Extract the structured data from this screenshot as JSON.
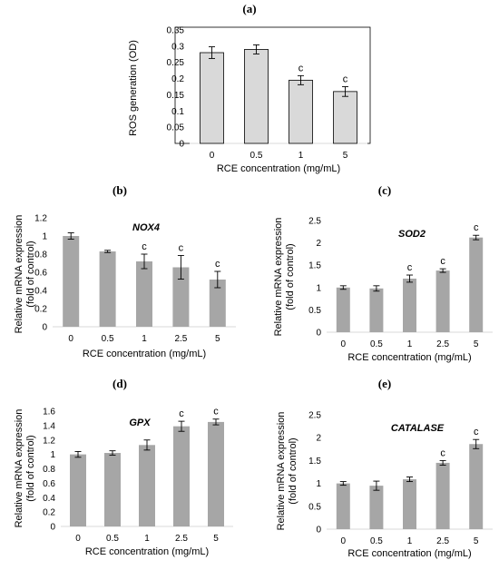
{
  "chart_data": [
    {
      "panel": "(a)",
      "type": "bar",
      "categories": [
        "0",
        "0.5",
        "1",
        "5"
      ],
      "values": [
        0.28,
        0.29,
        0.195,
        0.16
      ],
      "errors": [
        0.018,
        0.014,
        0.014,
        0.015
      ],
      "letters": [
        "",
        "",
        "c",
        "c"
      ],
      "title": "",
      "xlabel": "RCE concentration (mg/mL)",
      "ylabel": [
        "ROS generation (OD)"
      ],
      "ylim": [
        0,
        0.35
      ],
      "yticks": [
        "0",
        "0.05",
        "0.1",
        "0.15",
        "0.2",
        "0.25",
        "0.3",
        "0.35"
      ],
      "bar_color": "#d9d9d9",
      "grid": false
    },
    {
      "panel": "(b)",
      "type": "bar",
      "categories": [
        "0",
        "0.5",
        "1",
        "2.5",
        "5"
      ],
      "values": [
        1.0,
        0.83,
        0.72,
        0.655,
        0.52
      ],
      "errors": [
        0.035,
        0.012,
        0.08,
        0.13,
        0.09
      ],
      "letters": [
        "",
        "",
        "c",
        "c",
        "c"
      ],
      "title": "NOX4",
      "xlabel": "RCE concentration (mg/mL)",
      "ylabel": [
        "Relative mRNA expression",
        "(fold of control)"
      ],
      "ylim": [
        0,
        1.2
      ],
      "yticks": [
        "0",
        "0.2",
        "0.4",
        "0.6",
        "0.8",
        "1",
        "1.2"
      ],
      "bar_color": "#a6a6a6",
      "grid": false
    },
    {
      "panel": "(c)",
      "type": "bar",
      "categories": [
        "0",
        "0.5",
        "1",
        "2.5",
        "5"
      ],
      "values": [
        1.0,
        0.98,
        1.2,
        1.38,
        2.12
      ],
      "errors": [
        0.04,
        0.06,
        0.08,
        0.04,
        0.05
      ],
      "letters": [
        "",
        "",
        "c",
        "c",
        "c"
      ],
      "title": "SOD2",
      "xlabel": "RCE concentration (mg/mL)",
      "ylabel": [
        "Relative mRNA expression",
        "(fold of control)"
      ],
      "ylim": [
        0,
        2.5
      ],
      "yticks": [
        "0",
        "0.5",
        "1",
        "1.5",
        "2",
        "2.5"
      ],
      "bar_color": "#a6a6a6",
      "grid": false
    },
    {
      "panel": "(d)",
      "type": "bar",
      "categories": [
        "0",
        "0.5",
        "1",
        "2.5",
        "5"
      ],
      "values": [
        1.0,
        1.02,
        1.13,
        1.39,
        1.45
      ],
      "errors": [
        0.04,
        0.03,
        0.07,
        0.07,
        0.04
      ],
      "letters": [
        "",
        "",
        "",
        "c",
        "c"
      ],
      "title": "GPX",
      "xlabel": "RCE concentration (mg/mL)",
      "ylabel": [
        "Relative mRNA expression",
        "(fold of control)"
      ],
      "ylim": [
        0,
        1.6
      ],
      "yticks": [
        "0",
        "0.2",
        "0.4",
        "0.6",
        "0.8",
        "1",
        "1.2",
        "1.4",
        "1.6"
      ],
      "bar_color": "#a6a6a6",
      "grid": false
    },
    {
      "panel": "(e)",
      "type": "bar",
      "categories": [
        "0",
        "0.5",
        "1",
        "2.5",
        "5"
      ],
      "values": [
        1.0,
        0.95,
        1.09,
        1.45,
        1.86
      ],
      "errors": [
        0.04,
        0.1,
        0.05,
        0.05,
        0.1
      ],
      "letters": [
        "",
        "",
        "",
        "c",
        "c"
      ],
      "title": "CATALASE",
      "xlabel": "RCE concentration (mg/mL)",
      "ylabel": [
        "Relative mRNA expression",
        "(fold of control)"
      ],
      "ylim": [
        0,
        2.5
      ],
      "yticks": [
        "0",
        "0.5",
        "1",
        "1.5",
        "2",
        "2.5"
      ],
      "bar_color": "#a6a6a6",
      "grid": false
    }
  ]
}
